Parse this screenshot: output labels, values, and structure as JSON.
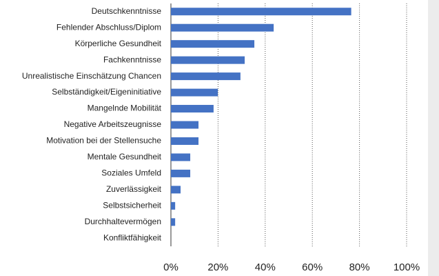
{
  "chart_data": {
    "type": "hbar",
    "categories": [
      "Deutschkenntnisse",
      "Fehlender Abschluss/Diplom",
      "Körperliche Gesundheit",
      "Fachkenntnisse",
      "Unrealistische Einschätzung Chancen",
      "Selbständigkeit/Eigeninitiative",
      "Mangelnde Mobilität",
      "Negative Arbeitszeugnisse",
      "Motivation bei der Stellensuche",
      "Mentale Gesundheit",
      "Soziales Umfeld",
      "Zuverlässigkeit",
      "Selbstsicherheit",
      "Durchhaltevermögen",
      "Konfliktfähigkeit"
    ],
    "values": [
      76.5,
      43.6,
      35.4,
      31.3,
      29.5,
      19.9,
      18.1,
      11.7,
      11.7,
      8.2,
      8.2,
      4.1,
      1.8,
      1.8,
      0
    ],
    "color": "#4472c4",
    "xlim": [
      0,
      100
    ],
    "xticks": [
      {
        "value": 0,
        "label": "0%"
      },
      {
        "value": 20,
        "label": "20%"
      },
      {
        "value": 40,
        "label": "40%"
      },
      {
        "value": 60,
        "label": "60%"
      },
      {
        "value": 80,
        "label": "80%"
      },
      {
        "value": 100,
        "label": "100%"
      }
    ],
    "grid": true
  }
}
